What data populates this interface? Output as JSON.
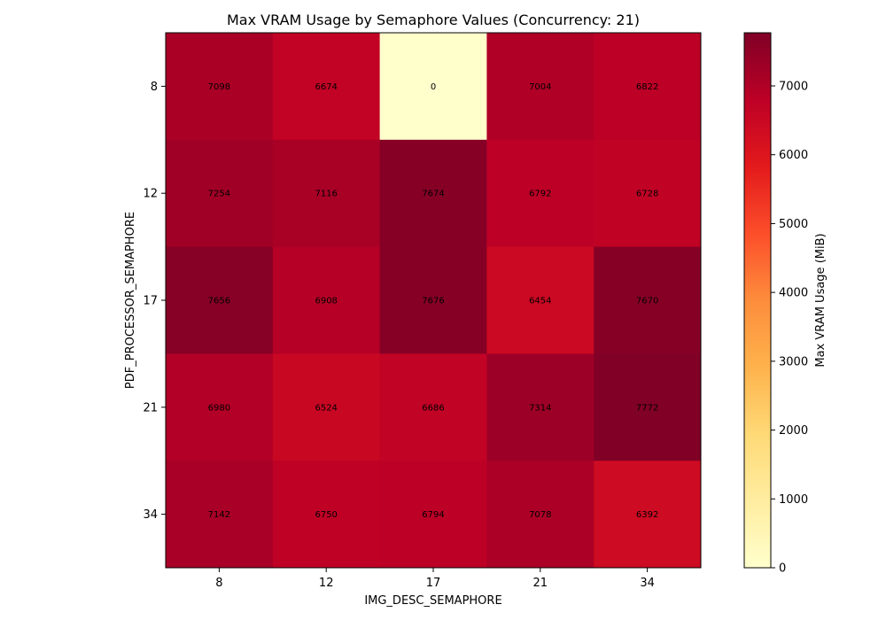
{
  "chart_data": {
    "type": "heatmap",
    "title": "Max VRAM Usage by Semaphore Values (Concurrency: 21)",
    "xlabel": "IMG_DESC_SEMAPHORE",
    "ylabel": "PDF_PROCESSOR_SEMAPHORE",
    "x_categories": [
      "8",
      "12",
      "17",
      "21",
      "34"
    ],
    "y_categories": [
      "8",
      "12",
      "17",
      "21",
      "34"
    ],
    "values": [
      [
        7098,
        6674,
        0,
        7004,
        6822
      ],
      [
        7254,
        7116,
        7674,
        6792,
        6728
      ],
      [
        7656,
        6908,
        7676,
        6454,
        7670
      ],
      [
        6980,
        6524,
        6686,
        7314,
        7772
      ],
      [
        7142,
        6750,
        6794,
        7078,
        6392
      ]
    ],
    "colormap": "YlOrRd",
    "colorbar": {
      "label": "Max VRAM Usage (MiB)",
      "range": [
        0,
        7772
      ],
      "ticks": [
        0,
        1000,
        2000,
        3000,
        4000,
        5000,
        6000,
        7000
      ]
    },
    "colormap_stops": [
      "#ffffcc",
      "#ffeda0",
      "#fed976",
      "#feb24c",
      "#fd8d3c",
      "#fc4e2a",
      "#e31a1c",
      "#bd0026",
      "#800026"
    ]
  }
}
